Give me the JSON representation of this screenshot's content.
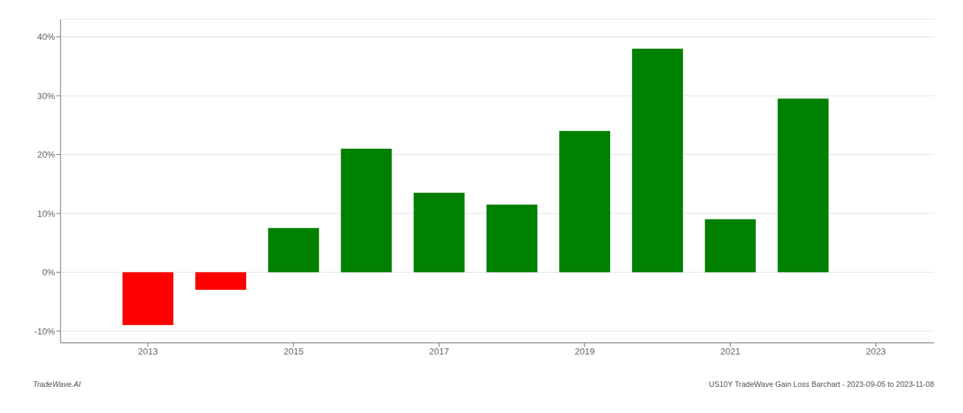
{
  "chart_data": {
    "type": "bar",
    "x": [
      2013,
      2014,
      2015,
      2016,
      2017,
      2018,
      2019,
      2020,
      2021,
      2022
    ],
    "values": [
      -9.0,
      -3.0,
      7.5,
      21.0,
      13.5,
      11.5,
      24.0,
      38.0,
      9.0,
      29.5
    ],
    "colors": [
      "#ff0000",
      "#ff0000",
      "#008000",
      "#008000",
      "#008000",
      "#008000",
      "#008000",
      "#008000",
      "#008000",
      "#008000"
    ],
    "xlim": [
      2011.8,
      2023.8
    ],
    "xticks": [
      2013,
      2015,
      2017,
      2019,
      2021,
      2023
    ],
    "ylim": [
      -12,
      43
    ],
    "yticks": [
      {
        "value": -10,
        "label": "-10%"
      },
      {
        "value": 0,
        "label": "0%"
      },
      {
        "value": 10,
        "label": "10%"
      },
      {
        "value": 20,
        "label": "20%"
      },
      {
        "value": 30,
        "label": "30%"
      },
      {
        "value": 40,
        "label": "40%"
      }
    ],
    "grid": true,
    "annotations": [
      "TradeWave.AI",
      "US10Y TradeWave Gain Loss Barchart - 2023-09-05 to 2023-11-08"
    ]
  }
}
